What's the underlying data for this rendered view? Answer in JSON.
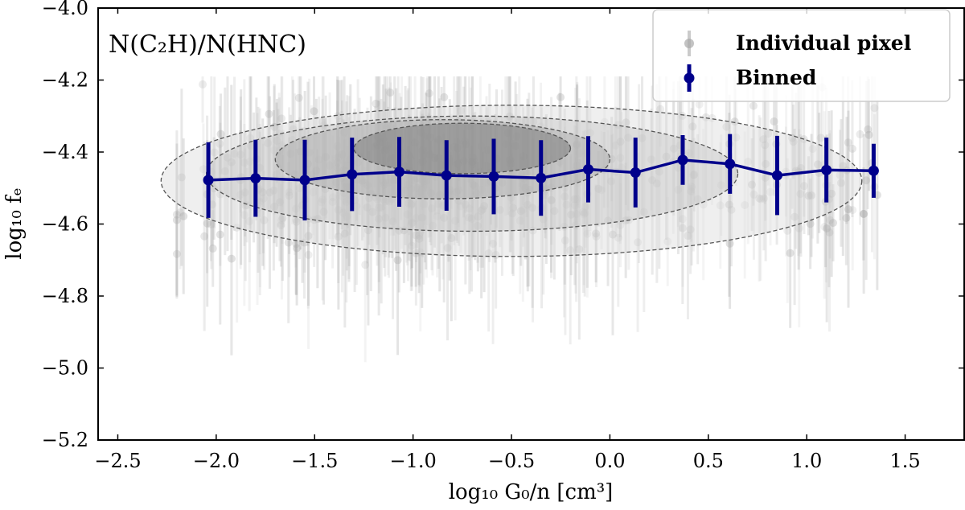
{
  "chart_data": {
    "type": "scatter",
    "title": "",
    "annotation": "N(C₂H)/N(HNC)",
    "xlabel": "log₁₀ G₀/n [cm³]",
    "ylabel": "log₁₀ fₑ",
    "xlim": [
      -2.6,
      1.8
    ],
    "ylim": [
      -5.2,
      -4.0
    ],
    "x_ticks": [
      -2.5,
      -2.0,
      -1.5,
      -1.0,
      -0.5,
      0.0,
      0.5,
      1.0,
      1.5
    ],
    "y_ticks": [
      -5.2,
      -5.0,
      -4.8,
      -4.6,
      -4.4,
      -4.2,
      -4.0
    ],
    "x_tick_labels": [
      "−2.5",
      "−2.0",
      "−1.5",
      "−1.0",
      "−0.5",
      "0.0",
      "0.5",
      "1.0",
      "1.5"
    ],
    "y_tick_labels": [
      "−5.2",
      "−5.0",
      "−4.8",
      "−4.6",
      "−4.4",
      "−4.2",
      "−4.0"
    ],
    "grid": false,
    "legend_position": "top-right",
    "legend": [
      {
        "label": "Individual pixel",
        "color": "#a9a9a9"
      },
      {
        "label": "Binned",
        "color": "#00008b"
      }
    ],
    "series": [
      {
        "name": "Binned",
        "color": "#00008b",
        "x": [
          -2.04,
          -1.8,
          -1.55,
          -1.31,
          -1.07,
          -0.83,
          -0.59,
          -0.35,
          -0.11,
          0.13,
          0.37,
          0.61,
          0.85,
          1.1,
          1.34
        ],
        "y": [
          -4.478,
          -4.473,
          -4.478,
          -4.462,
          -4.455,
          -4.465,
          -4.468,
          -4.472,
          -4.448,
          -4.457,
          -4.422,
          -4.433,
          -4.465,
          -4.45,
          -4.452
        ],
        "yerr": [
          0.105,
          0.107,
          0.112,
          0.102,
          0.097,
          0.098,
          0.105,
          0.105,
          0.092,
          0.097,
          0.069,
          0.083,
          0.11,
          0.09,
          0.075
        ]
      }
    ],
    "individual_pixels": {
      "name": "Individual pixel",
      "color": "#a9a9a9",
      "x_range": [
        -2.2,
        1.42
      ],
      "y_center": -4.48,
      "y_spread": 0.18
    }
  }
}
